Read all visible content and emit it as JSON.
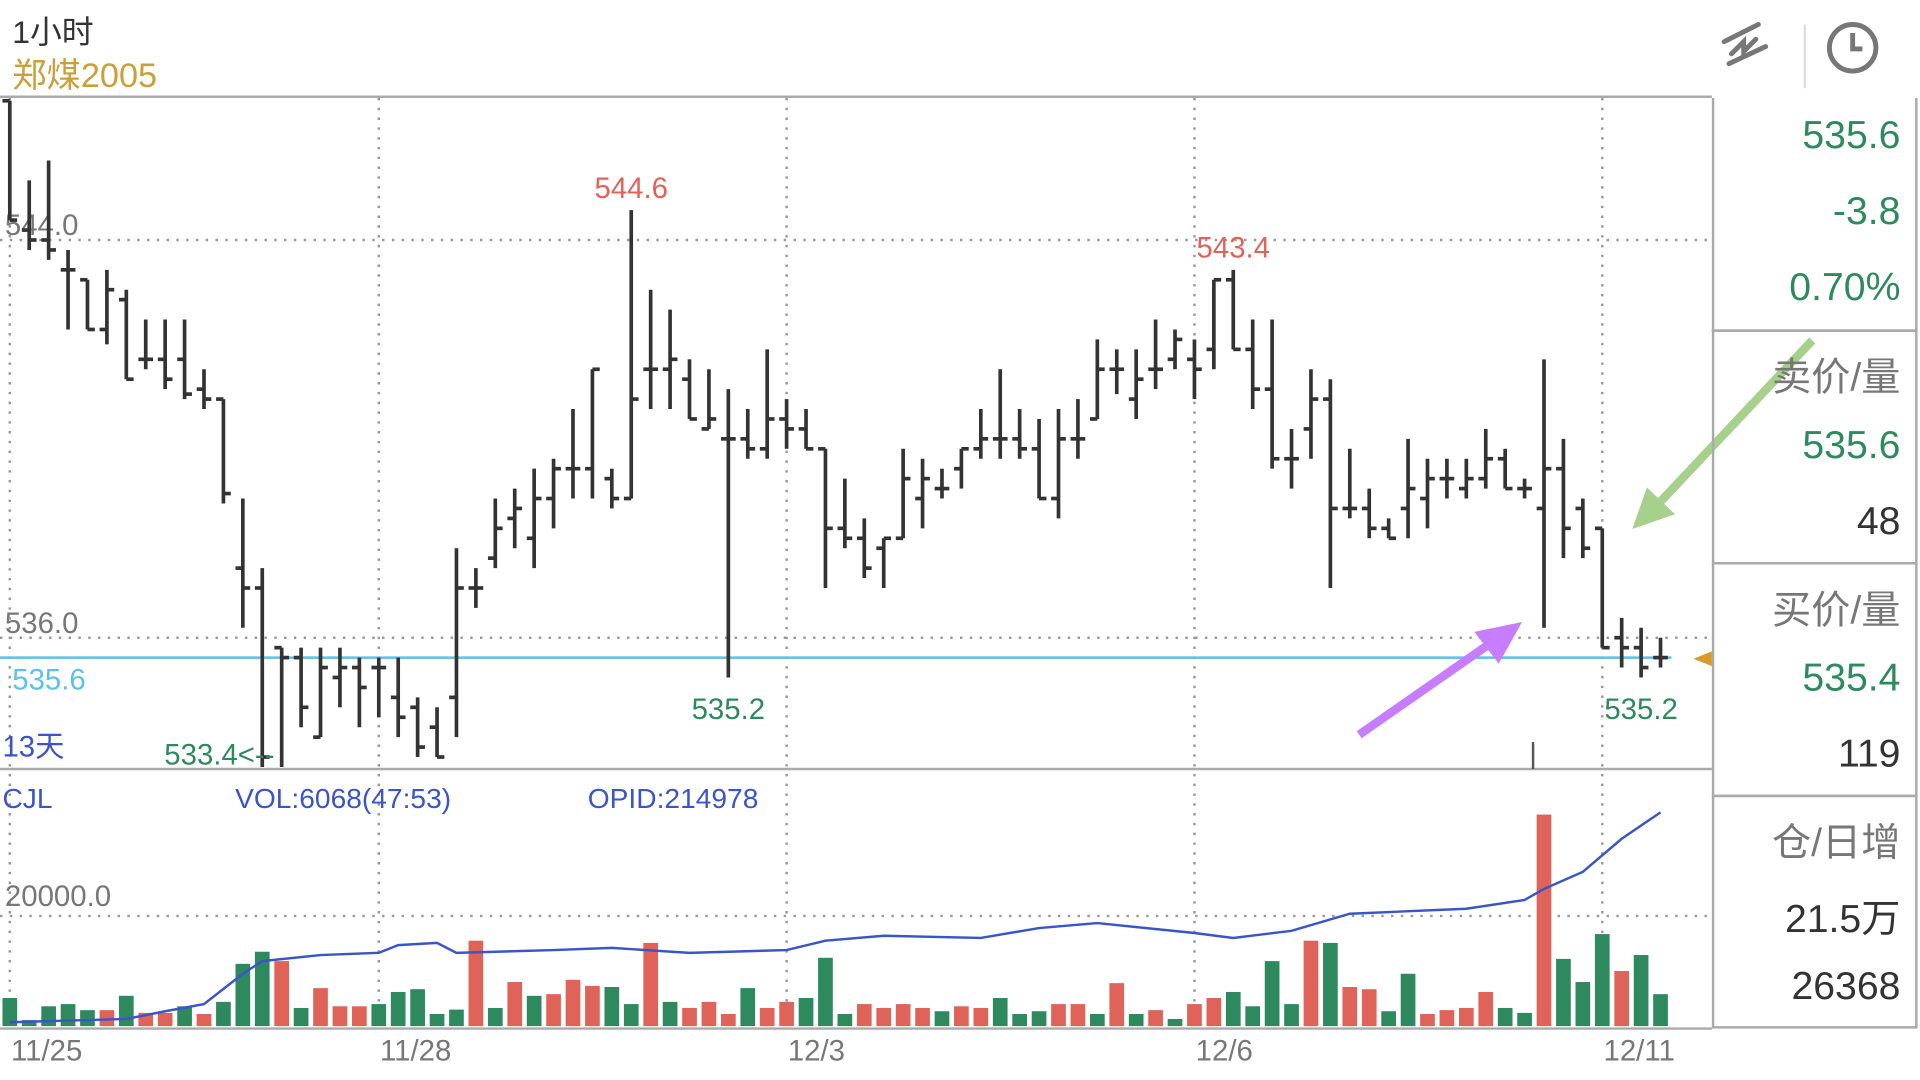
{
  "header": {
    "period": "1小时",
    "symbol": "郑煤2005",
    "icons": [
      "drawing-tool-icon",
      "clock-icon"
    ]
  },
  "side_panel": {
    "last_price": "535.6",
    "change": "-3.8",
    "change_pct": "0.70%",
    "ask_label": "卖价/量",
    "ask_price": "535.6",
    "ask_qty": "48",
    "bid_label": "买价/量",
    "bid_price": "535.4",
    "bid_qty": "119",
    "oi_label": "仓/日增",
    "oi_total": "21.5万",
    "oi_daily_change": "26368"
  },
  "colors": {
    "up": "#e0635a",
    "down": "#2e8a5e",
    "bar": "#333333",
    "indicator": "#3a55c8",
    "last_price_line": "#5bc0eb",
    "symbol": "#c9a03a",
    "arrow_green": "#a8d08d",
    "arrow_purple": "#c77dff"
  },
  "chart_data": {
    "type": "ohlc",
    "price_axis": {
      "ticks": [
        "544.0",
        "536.0"
      ],
      "tick_values": [
        544.0,
        536.0
      ],
      "last_price": 535.6,
      "last_price_label": "535.6",
      "grid": true
    },
    "annotations": [
      {
        "text": "544.6",
        "bar": 32,
        "kind": "high",
        "color": "up"
      },
      {
        "text": "543.4",
        "bar": 63,
        "kind": "high",
        "color": "up"
      },
      {
        "text": "535.2",
        "bar": 37,
        "kind": "low",
        "color": "down"
      },
      {
        "text": "535.2",
        "bar": 84,
        "kind": "low",
        "color": "down"
      },
      {
        "text": "533.4<--",
        "bar": 13,
        "kind": "low-left",
        "color": "down"
      }
    ],
    "range_label": "13天",
    "x_labels": [
      {
        "text": "11/25",
        "bar": 0
      },
      {
        "text": "11/28",
        "bar": 19
      },
      {
        "text": "12/3",
        "bar": 40
      },
      {
        "text": "12/6",
        "bar": 61
      },
      {
        "text": "12/11",
        "bar": 82
      }
    ],
    "ohlc": [
      [
        546.8,
        546.8,
        544.4,
        544.4
      ],
      [
        544.2,
        545.2,
        543.8,
        544.0
      ],
      [
        544.0,
        545.6,
        543.6,
        543.8
      ],
      [
        543.4,
        543.8,
        542.2,
        543.4
      ],
      [
        543.2,
        543.2,
        542.2,
        542.2
      ],
      [
        542.2,
        543.4,
        541.9,
        543.0
      ],
      [
        542.8,
        543.0,
        541.2,
        541.2
      ],
      [
        541.6,
        542.4,
        541.4,
        541.6
      ],
      [
        541.6,
        542.4,
        541.0,
        541.2
      ],
      [
        541.6,
        542.4,
        540.8,
        540.9
      ],
      [
        541.0,
        541.4,
        540.6,
        540.8
      ],
      [
        540.8,
        540.8,
        538.7,
        538.9
      ],
      [
        537.4,
        538.8,
        536.2,
        537.0
      ],
      [
        537.0,
        537.4,
        533.4,
        533.6
      ],
      [
        535.8,
        535.8,
        533.4,
        535.6
      ],
      [
        535.6,
        535.8,
        534.2,
        534.6
      ],
      [
        534.0,
        535.8,
        534.0,
        535.4
      ],
      [
        535.2,
        535.8,
        534.6,
        535.4
      ],
      [
        535.4,
        535.6,
        534.2,
        535.0
      ],
      [
        535.4,
        535.6,
        534.4,
        535.4
      ],
      [
        534.8,
        535.6,
        534.0,
        534.4
      ],
      [
        534.6,
        534.8,
        533.6,
        533.8
      ],
      [
        534.2,
        534.6,
        533.6,
        533.6
      ],
      [
        534.8,
        537.8,
        534.0,
        537.0
      ],
      [
        537.0,
        537.4,
        536.6,
        537.0
      ],
      [
        537.6,
        538.8,
        537.4,
        538.2
      ],
      [
        538.4,
        539.0,
        537.8,
        538.6
      ],
      [
        538.0,
        539.4,
        537.4,
        538.8
      ],
      [
        538.8,
        539.6,
        538.2,
        539.4
      ],
      [
        539.4,
        540.6,
        538.8,
        539.4
      ],
      [
        539.4,
        541.4,
        538.8,
        541.4
      ],
      [
        539.2,
        539.4,
        538.6,
        538.8
      ],
      [
        538.8,
        544.6,
        538.8,
        540.8
      ],
      [
        541.4,
        543.0,
        540.6,
        541.4
      ],
      [
        541.4,
        542.6,
        540.6,
        541.6
      ],
      [
        541.2,
        541.6,
        540.4,
        540.4
      ],
      [
        540.2,
        541.4,
        540.2,
        540.4
      ],
      [
        540.0,
        541.0,
        535.2,
        540.0
      ],
      [
        540.0,
        540.6,
        539.6,
        539.8
      ],
      [
        539.8,
        541.8,
        539.6,
        540.4
      ],
      [
        540.4,
        540.8,
        539.8,
        540.2
      ],
      [
        540.2,
        540.6,
        539.8,
        539.8
      ],
      [
        539.8,
        539.8,
        537.0,
        538.2
      ],
      [
        538.2,
        539.2,
        537.8,
        538.0
      ],
      [
        538.0,
        538.4,
        537.2,
        537.4
      ],
      [
        537.8,
        538.0,
        537.0,
        538.0
      ],
      [
        538.0,
        539.8,
        538.0,
        539.2
      ],
      [
        538.8,
        539.6,
        538.2,
        539.2
      ],
      [
        539.0,
        539.4,
        538.8,
        539.0
      ],
      [
        539.4,
        539.8,
        539.0,
        539.8
      ],
      [
        539.8,
        540.6,
        539.6,
        540.0
      ],
      [
        540.0,
        541.4,
        539.6,
        540.0
      ],
      [
        540.0,
        540.6,
        539.6,
        539.8
      ],
      [
        539.8,
        540.4,
        538.8,
        538.8
      ],
      [
        538.8,
        540.6,
        538.4,
        540.0
      ],
      [
        540.0,
        540.8,
        539.6,
        540.0
      ],
      [
        540.4,
        542.0,
        540.4,
        541.4
      ],
      [
        541.4,
        541.8,
        540.9,
        541.4
      ],
      [
        540.8,
        541.8,
        540.4,
        541.2
      ],
      [
        541.4,
        542.4,
        541.0,
        541.4
      ],
      [
        541.6,
        542.2,
        541.4,
        542.0
      ],
      [
        541.6,
        542.0,
        540.8,
        541.4
      ],
      [
        541.8,
        543.2,
        541.4,
        543.2
      ],
      [
        543.2,
        543.4,
        541.8,
        541.8
      ],
      [
        541.8,
        542.4,
        540.6,
        541.0
      ],
      [
        541.0,
        542.4,
        539.4,
        539.6
      ],
      [
        539.6,
        540.2,
        539.0,
        539.6
      ],
      [
        540.2,
        541.4,
        539.6,
        540.8
      ],
      [
        540.8,
        541.2,
        537.0,
        538.6
      ],
      [
        538.6,
        539.8,
        538.4,
        538.6
      ],
      [
        538.6,
        539.0,
        538.0,
        538.2
      ],
      [
        538.2,
        538.4,
        538.0,
        538.0
      ],
      [
        538.6,
        540.0,
        538.0,
        539.0
      ],
      [
        538.8,
        539.6,
        538.2,
        539.2
      ],
      [
        539.2,
        539.6,
        538.8,
        539.2
      ],
      [
        539.0,
        539.6,
        538.8,
        539.2
      ],
      [
        539.2,
        540.2,
        539.0,
        539.6
      ],
      [
        539.6,
        539.8,
        539.0,
        539.0
      ],
      [
        539.0,
        539.2,
        538.8,
        539.0
      ],
      [
        538.6,
        541.6,
        536.2,
        539.4
      ],
      [
        539.4,
        540.0,
        537.6,
        538.2
      ],
      [
        538.6,
        538.8,
        537.6,
        537.8
      ],
      [
        538.2,
        538.2,
        535.8,
        535.8
      ],
      [
        536.0,
        536.4,
        535.4,
        535.8
      ],
      [
        535.8,
        536.2,
        535.2,
        535.4
      ],
      [
        535.6,
        536.0,
        535.4,
        535.6
      ]
    ],
    "volume_pane": {
      "label": "CJL",
      "vol_label": "VOL:6068(47:53)",
      "opid_label": "OPID:214978",
      "axis_tick": "20000.0",
      "axis_tick_value": 20000,
      "volumes": [
        5100,
        1100,
        3600,
        4000,
        2900,
        2900,
        5500,
        2400,
        2400,
        3600,
        2200,
        4400,
        11300,
        13500,
        11800,
        3300,
        6900,
        3600,
        3600,
        4000,
        6200,
        6700,
        2200,
        3000,
        15500,
        3300,
        8000,
        5500,
        5800,
        8400,
        7300,
        7100,
        4000,
        15100,
        4400,
        3300,
        4400,
        2200,
        6900,
        3300,
        4400,
        5100,
        12400,
        2200,
        4000,
        3300,
        4000,
        3300,
        2700,
        3600,
        3300,
        5100,
        2200,
        2700,
        4000,
        4000,
        2200,
        7800,
        2200,
        2900,
        1300,
        4000,
        5100,
        6200,
        3600,
        11800,
        4000,
        15500,
        15100,
        7100,
        6700,
        2700,
        9500,
        2200,
        2900,
        3300,
        6200,
        3300,
        2400,
        38400,
        12200,
        8000,
        16700,
        10000,
        12900,
        5800
      ],
      "volume_colors": [
        "down",
        "down",
        "down",
        "down",
        "down",
        "up",
        "down",
        "up",
        "up",
        "down",
        "up",
        "down",
        "down",
        "down",
        "up",
        "down",
        "up",
        "up",
        "up",
        "down",
        "down",
        "down",
        "down",
        "down",
        "up",
        "down",
        "up",
        "down",
        "up",
        "up",
        "up",
        "down",
        "down",
        "up",
        "down",
        "up",
        "up",
        "up",
        "down",
        "up",
        "up",
        "down",
        "down",
        "down",
        "up",
        "up",
        "up",
        "up",
        "down",
        "up",
        "up",
        "down",
        "down",
        "down",
        "up",
        "up",
        "down",
        "up",
        "down",
        "up",
        "down",
        "up",
        "up",
        "down",
        "down",
        "down",
        "down",
        "up",
        "down",
        "up",
        "up",
        "down",
        "down",
        "up",
        "up",
        "up",
        "up",
        "down",
        "down",
        "up",
        "down",
        "down",
        "down",
        "up",
        "down",
        "down"
      ],
      "open_interest_line": [
        [
          0,
          700
        ],
        [
          6,
          1300
        ],
        [
          8,
          2700
        ],
        [
          10,
          4000
        ],
        [
          12,
          9500
        ],
        [
          13,
          11800
        ],
        [
          16,
          12900
        ],
        [
          19,
          13300
        ],
        [
          20,
          14700
        ],
        [
          22,
          15100
        ],
        [
          23,
          13300
        ],
        [
          28,
          13800
        ],
        [
          31,
          14200
        ],
        [
          35,
          13300
        ],
        [
          40,
          13800
        ],
        [
          42,
          15500
        ],
        [
          45,
          16400
        ],
        [
          50,
          16000
        ],
        [
          53,
          17800
        ],
        [
          56,
          18700
        ],
        [
          61,
          16900
        ],
        [
          63,
          16000
        ],
        [
          66,
          17300
        ],
        [
          69,
          20400
        ],
        [
          75,
          21300
        ],
        [
          78,
          22900
        ],
        [
          79,
          24900
        ],
        [
          81,
          28000
        ],
        [
          83,
          34000
        ],
        [
          85,
          38800
        ]
      ]
    }
  }
}
